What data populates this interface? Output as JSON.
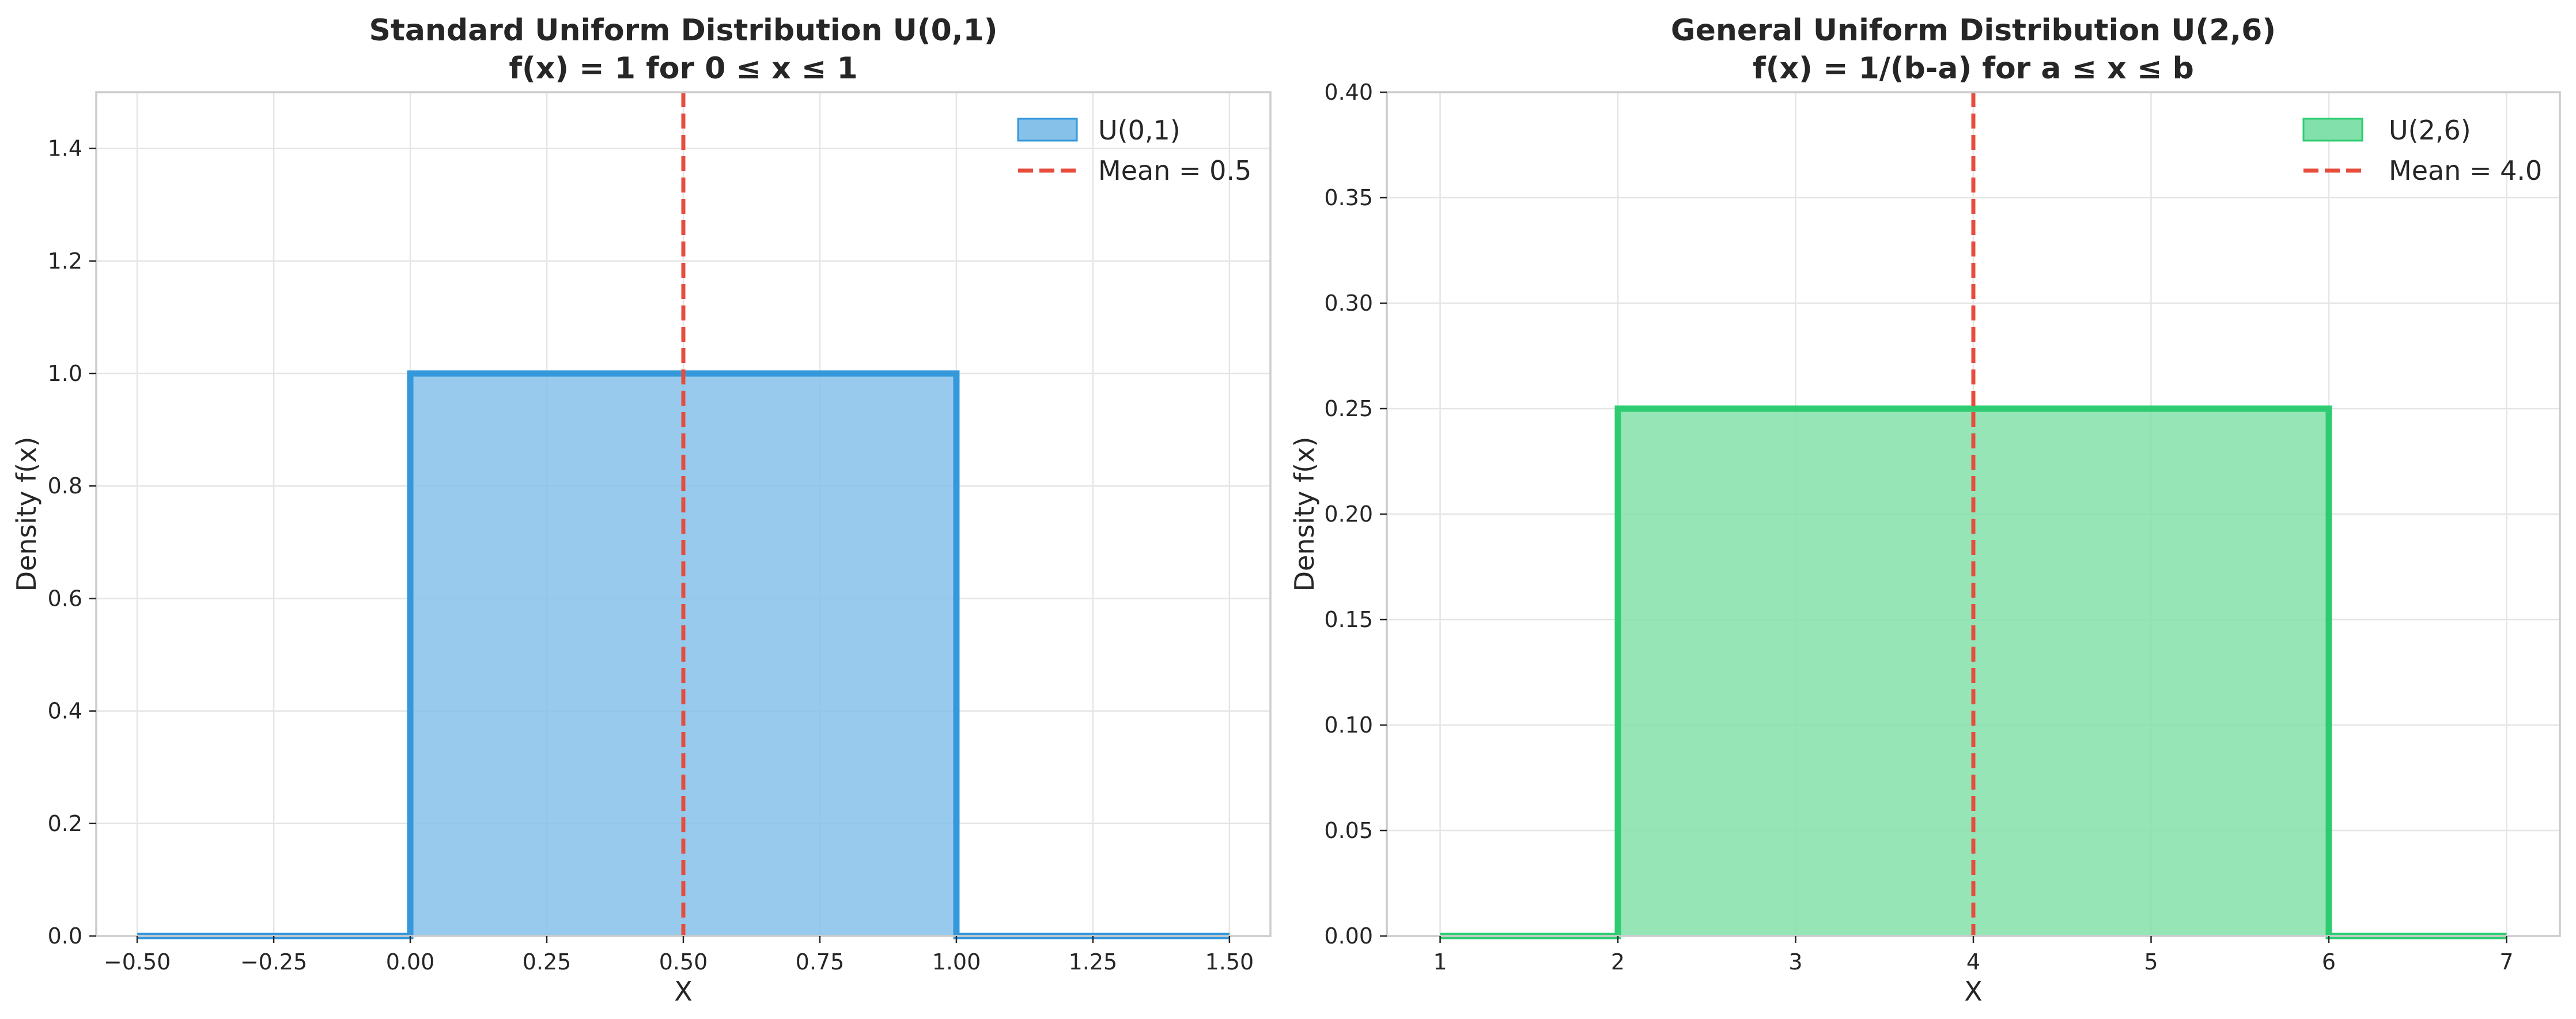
{
  "chart_data": [
    {
      "type": "line",
      "title": "Standard Uniform Distribution U(0,1)",
      "subtitle": "f(x) = 1 for 0 ≤ x ≤ 1",
      "xlabel": "X",
      "ylabel": "Density f(x)",
      "xlim": [
        -0.575,
        1.575
      ],
      "ylim": [
        0,
        1.5
      ],
      "xticks": [
        -0.5,
        -0.25,
        0,
        0.25,
        0.5,
        0.75,
        1,
        1.25,
        1.5
      ],
      "xtick_labels": [
        "−0.50",
        "−0.25",
        "0.00",
        "0.25",
        "0.50",
        "0.75",
        "1.00",
        "1.25",
        "1.50"
      ],
      "yticks": [
        0,
        0.2,
        0.4,
        0.6,
        0.8,
        1.0,
        1.2,
        1.4
      ],
      "ytick_labels": [
        "0.0",
        "0.2",
        "0.4",
        "0.6",
        "0.8",
        "1.0",
        "1.2",
        "1.4"
      ],
      "grid": true,
      "legend_position": "top-right",
      "series": [
        {
          "name": "U(0,1)",
          "kind": "step-fill",
          "color": "#3498db",
          "fill_color": "#85c1e9",
          "x": [
            -0.5,
            0,
            0,
            1,
            1,
            1.5
          ],
          "y": [
            0,
            0,
            1,
            1,
            0,
            0
          ]
        },
        {
          "name": "Mean = 0.5",
          "kind": "vline",
          "color": "#e74c3c",
          "x": 0.5
        }
      ]
    },
    {
      "type": "line",
      "title": "General Uniform Distribution U(2,6)",
      "subtitle": "f(x) = 1/(b-a) for a ≤ x ≤ b",
      "xlabel": "X",
      "ylabel": "Density f(x)",
      "xlim": [
        0.7,
        7.3
      ],
      "ylim": [
        0,
        0.4
      ],
      "xticks": [
        1,
        2,
        3,
        4,
        5,
        6,
        7
      ],
      "xtick_labels": [
        "1",
        "2",
        "3",
        "4",
        "5",
        "6",
        "7"
      ],
      "yticks": [
        0,
        0.05,
        0.1,
        0.15,
        0.2,
        0.25,
        0.3,
        0.35,
        0.4
      ],
      "ytick_labels": [
        "0.00",
        "0.05",
        "0.10",
        "0.15",
        "0.20",
        "0.25",
        "0.30",
        "0.35",
        "0.40"
      ],
      "grid": true,
      "legend_position": "top-right",
      "series": [
        {
          "name": "U(2,6)",
          "kind": "step-fill",
          "color": "#2ecc71",
          "fill_color": "#82e0aa",
          "x": [
            1,
            2,
            2,
            6,
            6,
            7
          ],
          "y": [
            0,
            0,
            0.25,
            0.25,
            0,
            0
          ]
        },
        {
          "name": "Mean = 4.0",
          "kind": "vline",
          "color": "#e74c3c",
          "x": 4
        }
      ]
    }
  ]
}
